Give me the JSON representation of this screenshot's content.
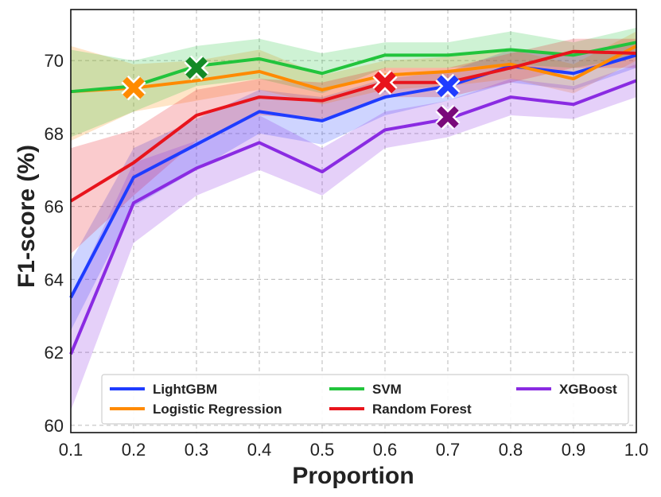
{
  "chart_data": {
    "type": "line",
    "xlabel": "Proportion",
    "ylabel": "F1-score (%)",
    "xlim": [
      0.1,
      1.0
    ],
    "ylim": [
      59.8,
      71.4
    ],
    "x_ticks": [
      "0.1",
      "0.2",
      "0.3",
      "0.4",
      "0.5",
      "0.6",
      "0.7",
      "0.8",
      "0.9",
      "1.0"
    ],
    "y_ticks": [
      "60",
      "62",
      "64",
      "66",
      "68",
      "70"
    ],
    "x_tick_values": [
      0.1,
      0.2,
      0.3,
      0.4,
      0.5,
      0.6,
      0.7,
      0.8,
      0.9,
      1.0
    ],
    "y_tick_values": [
      60,
      62,
      64,
      66,
      68,
      70
    ],
    "grid": true,
    "legend": "bottom",
    "x": [
      0.1,
      0.2,
      0.3,
      0.4,
      0.5,
      0.6,
      0.7,
      0.8,
      0.9,
      1.0
    ],
    "series": [
      {
        "name": "LightGBM",
        "color": "#1f3cff",
        "values": [
          63.5,
          66.8,
          67.7,
          68.6,
          68.35,
          69.0,
          69.3,
          69.85,
          69.65,
          70.15
        ],
        "lower": [
          62.6,
          66.0,
          67.0,
          68.0,
          67.7,
          68.5,
          68.9,
          69.4,
          69.2,
          69.8
        ],
        "upper": [
          64.5,
          67.6,
          68.4,
          69.2,
          69.0,
          69.5,
          69.7,
          70.3,
          70.1,
          70.5
        ],
        "best": {
          "x": 0.7,
          "y": 69.3
        }
      },
      {
        "name": "Logistic Regression",
        "color": "#ff8a00",
        "values": [
          69.15,
          69.25,
          69.45,
          69.7,
          69.2,
          69.6,
          69.7,
          69.9,
          69.5,
          70.4
        ],
        "lower": [
          67.8,
          68.6,
          68.9,
          69.2,
          68.8,
          69.2,
          69.3,
          69.5,
          69.1,
          70.0
        ],
        "upper": [
          70.4,
          69.9,
          70.0,
          70.3,
          69.6,
          70.0,
          70.1,
          70.3,
          69.9,
          70.8
        ],
        "best": {
          "x": 0.2,
          "y": 69.25
        }
      },
      {
        "name": "SVM",
        "color": "#22c43c",
        "values": [
          69.15,
          69.3,
          69.85,
          70.05,
          69.65,
          70.15,
          70.15,
          70.3,
          70.15,
          70.5
        ],
        "lower": [
          67.9,
          68.6,
          69.3,
          69.5,
          69.1,
          69.8,
          69.8,
          69.9,
          69.8,
          70.1
        ],
        "upper": [
          70.3,
          70.0,
          70.4,
          70.6,
          70.2,
          70.5,
          70.5,
          70.8,
          70.5,
          70.9
        ],
        "best": {
          "x": 0.3,
          "y": 69.8
        }
      },
      {
        "name": "Random Forest",
        "color": "#e8141c",
        "values": [
          66.15,
          67.2,
          68.5,
          69.0,
          68.9,
          69.4,
          69.4,
          69.8,
          70.25,
          70.2
        ],
        "lower": [
          64.7,
          66.3,
          67.8,
          68.5,
          68.4,
          69.0,
          69.0,
          69.4,
          69.8,
          69.8
        ],
        "upper": [
          67.6,
          68.1,
          69.2,
          69.5,
          69.4,
          69.8,
          69.8,
          70.2,
          70.6,
          70.6
        ],
        "best": {
          "x": 0.6,
          "y": 69.4
        }
      },
      {
        "name": "XGBoost",
        "color": "#8a2be2",
        "values": [
          61.95,
          66.1,
          67.05,
          67.75,
          66.95,
          68.1,
          68.4,
          69.0,
          68.8,
          69.45
        ],
        "lower": [
          60.4,
          65.0,
          66.3,
          67.0,
          66.3,
          67.6,
          67.9,
          68.5,
          68.4,
          69.0
        ],
        "upper": [
          63.5,
          67.2,
          67.8,
          68.5,
          67.6,
          68.6,
          68.9,
          69.5,
          69.3,
          69.9
        ],
        "best": {
          "x": 0.7,
          "y": 68.45
        }
      }
    ]
  }
}
